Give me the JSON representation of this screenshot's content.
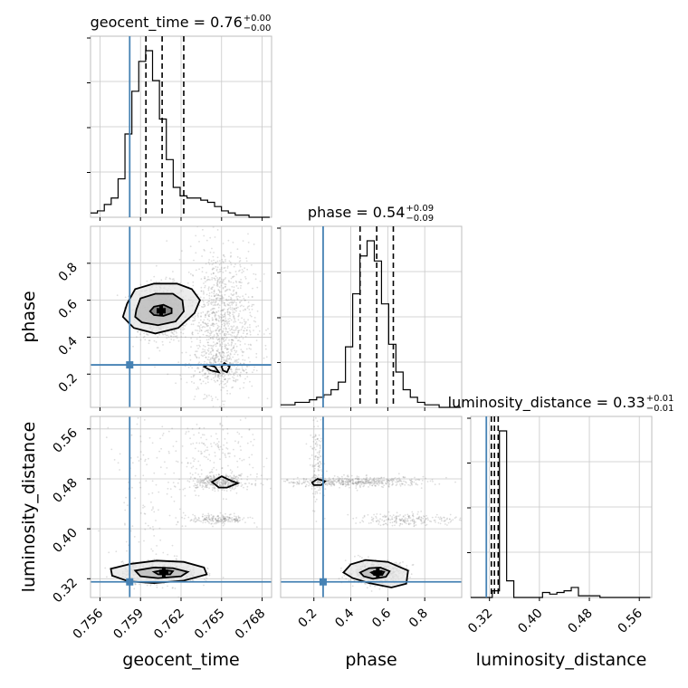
{
  "chart_data": {
    "type": "corner",
    "parameters": [
      {
        "name": "geocent_time",
        "title_prefix": "geocent_time = ",
        "value": "0.76",
        "plus": "+0.00",
        "minus": "−0.00",
        "range": [
          0.7553,
          0.7687
        ],
        "ticks": [
          0.756,
          0.759,
          0.762,
          0.765,
          0.768
        ],
        "tick_labels": [
          "0.756",
          "0.759",
          "0.762",
          "0.765",
          "0.768"
        ],
        "truth": 0.7582,
        "quantiles": [
          0.7594,
          0.7606,
          0.7622
        ],
        "hist_bin_width": 0.00051,
        "hist_values": [
          2,
          3,
          6,
          9,
          18,
          39,
          59,
          73,
          78,
          64,
          46,
          27,
          14,
          10,
          9,
          9,
          8,
          7,
          5,
          3,
          2,
          1,
          1,
          0,
          0,
          0
        ]
      },
      {
        "name": "phase",
        "title_prefix": "phase = ",
        "value": "0.54",
        "plus": "+0.09",
        "minus": "−0.09",
        "range": [
          0.02,
          1.0
        ],
        "ticks": [
          0.2,
          0.4,
          0.6,
          0.8
        ],
        "tick_labels": [
          "0.2",
          "0.4",
          "0.6",
          "0.8"
        ],
        "truth": 0.25,
        "quantiles": [
          0.45,
          0.54,
          0.63
        ],
        "hist_bin_width": 0.039,
        "hist_values": [
          1,
          1,
          2,
          2,
          3,
          4,
          5,
          7,
          10,
          24,
          45,
          60,
          66,
          58,
          41,
          25,
          14,
          7,
          4,
          2,
          1,
          1,
          0,
          0,
          0
        ]
      },
      {
        "name": "luminosity_distance",
        "title_prefix": "luminosity_distance = ",
        "value": "0.33",
        "plus": "+0.01",
        "minus": "−0.01",
        "range": [
          0.29,
          0.58
        ],
        "ticks": [
          0.32,
          0.4,
          0.48,
          0.56
        ],
        "tick_labels": [
          "0.32",
          "0.40",
          "0.48",
          "0.56"
        ],
        "truth": 0.315,
        "quantiles": [
          0.323,
          0.328,
          0.334
        ],
        "hist_bin_width": 0.0115,
        "hist_values": [
          0,
          0,
          0,
          4,
          100,
          10,
          0,
          0,
          0,
          0,
          3,
          2,
          3,
          4,
          6,
          1,
          1,
          1,
          0,
          0,
          0,
          0,
          0,
          0,
          0
        ]
      }
    ],
    "scatter": [
      {
        "x": "geocent_time",
        "y": "phase",
        "contours": [
          [
            [
              0.758,
              0.58
            ],
            [
              0.7586,
              0.66
            ],
            [
              0.76,
              0.69
            ],
            [
              0.7617,
              0.69
            ],
            [
              0.7628,
              0.66
            ],
            [
              0.7634,
              0.6
            ],
            [
              0.763,
              0.53
            ],
            [
              0.7618,
              0.45
            ],
            [
              0.7601,
              0.42
            ],
            [
              0.7585,
              0.45
            ],
            [
              0.7577,
              0.51
            ]
          ],
          [
            [
              0.7587,
              0.55
            ],
            [
              0.759,
              0.61
            ],
            [
              0.7601,
              0.635
            ],
            [
              0.7614,
              0.635
            ],
            [
              0.7621,
              0.6
            ],
            [
              0.7622,
              0.54
            ],
            [
              0.7616,
              0.485
            ],
            [
              0.7603,
              0.465
            ],
            [
              0.7591,
              0.48
            ],
            [
              0.7586,
              0.51
            ]
          ],
          [
            [
              0.7597,
              0.54
            ],
            [
              0.76,
              0.565
            ],
            [
              0.7607,
              0.575
            ],
            [
              0.7613,
              0.555
            ],
            [
              0.7613,
              0.53
            ],
            [
              0.7607,
              0.515
            ],
            [
              0.76,
              0.52
            ]
          ],
          [
            [
              0.764,
              0.25
            ],
            [
              0.7645,
              0.24
            ],
            [
              0.7648,
              0.21
            ],
            [
              0.7642,
              0.22
            ],
            [
              0.7637,
              0.24
            ]
          ],
          [
            [
              0.765,
              0.24
            ],
            [
              0.7652,
              0.26
            ],
            [
              0.7656,
              0.24
            ],
            [
              0.7654,
              0.21
            ],
            [
              0.7651,
              0.22
            ]
          ]
        ]
      },
      {
        "x": "geocent_time",
        "y": "luminosity_distance",
        "contours": [
          [
            [
              0.7568,
              0.336
            ],
            [
              0.7583,
              0.344
            ],
            [
              0.7602,
              0.349
            ],
            [
              0.7622,
              0.347
            ],
            [
              0.7637,
              0.338
            ],
            [
              0.7639,
              0.327
            ],
            [
              0.7622,
              0.317
            ],
            [
              0.76,
              0.313
            ],
            [
              0.7581,
              0.316
            ],
            [
              0.7569,
              0.325
            ]
          ],
          [
            [
              0.7586,
              0.333
            ],
            [
              0.76,
              0.338
            ],
            [
              0.7614,
              0.337
            ],
            [
              0.7625,
              0.331
            ],
            [
              0.762,
              0.324
            ],
            [
              0.7603,
              0.321
            ],
            [
              0.759,
              0.324
            ]
          ],
          [
            [
              0.76,
              0.331
            ],
            [
              0.7607,
              0.334
            ],
            [
              0.7614,
              0.332
            ],
            [
              0.7612,
              0.327
            ],
            [
              0.7603,
              0.327
            ]
          ],
          [
            [
              0.7643,
              0.475
            ],
            [
              0.765,
              0.484
            ],
            [
              0.7657,
              0.477
            ],
            [
              0.7662,
              0.473
            ],
            [
              0.7654,
              0.466
            ],
            [
              0.7648,
              0.466
            ]
          ]
        ]
      },
      {
        "x": "phase",
        "y": "luminosity_distance",
        "contours": [
          [
            [
              0.36,
              0.33
            ],
            [
              0.4,
              0.343
            ],
            [
              0.48,
              0.35
            ],
            [
              0.6,
              0.347
            ],
            [
              0.71,
              0.333
            ],
            [
              0.7,
              0.312
            ],
            [
              0.62,
              0.306
            ],
            [
              0.5,
              0.313
            ],
            [
              0.41,
              0.321
            ]
          ],
          [
            [
              0.45,
              0.33
            ],
            [
              0.5,
              0.337
            ],
            [
              0.56,
              0.338
            ],
            [
              0.61,
              0.332
            ],
            [
              0.59,
              0.323
            ],
            [
              0.52,
              0.32
            ],
            [
              0.47,
              0.324
            ]
          ],
          [
            [
              0.51,
              0.33
            ],
            [
              0.54,
              0.333
            ],
            [
              0.58,
              0.331
            ],
            [
              0.57,
              0.326
            ],
            [
              0.53,
              0.326
            ]
          ],
          [
            [
              0.19,
              0.474
            ],
            [
              0.22,
              0.48
            ],
            [
              0.26,
              0.476
            ],
            [
              0.24,
              0.47
            ],
            [
              0.2,
              0.47
            ]
          ]
        ]
      }
    ],
    "truth_color": "#4682b4",
    "grid": true
  }
}
